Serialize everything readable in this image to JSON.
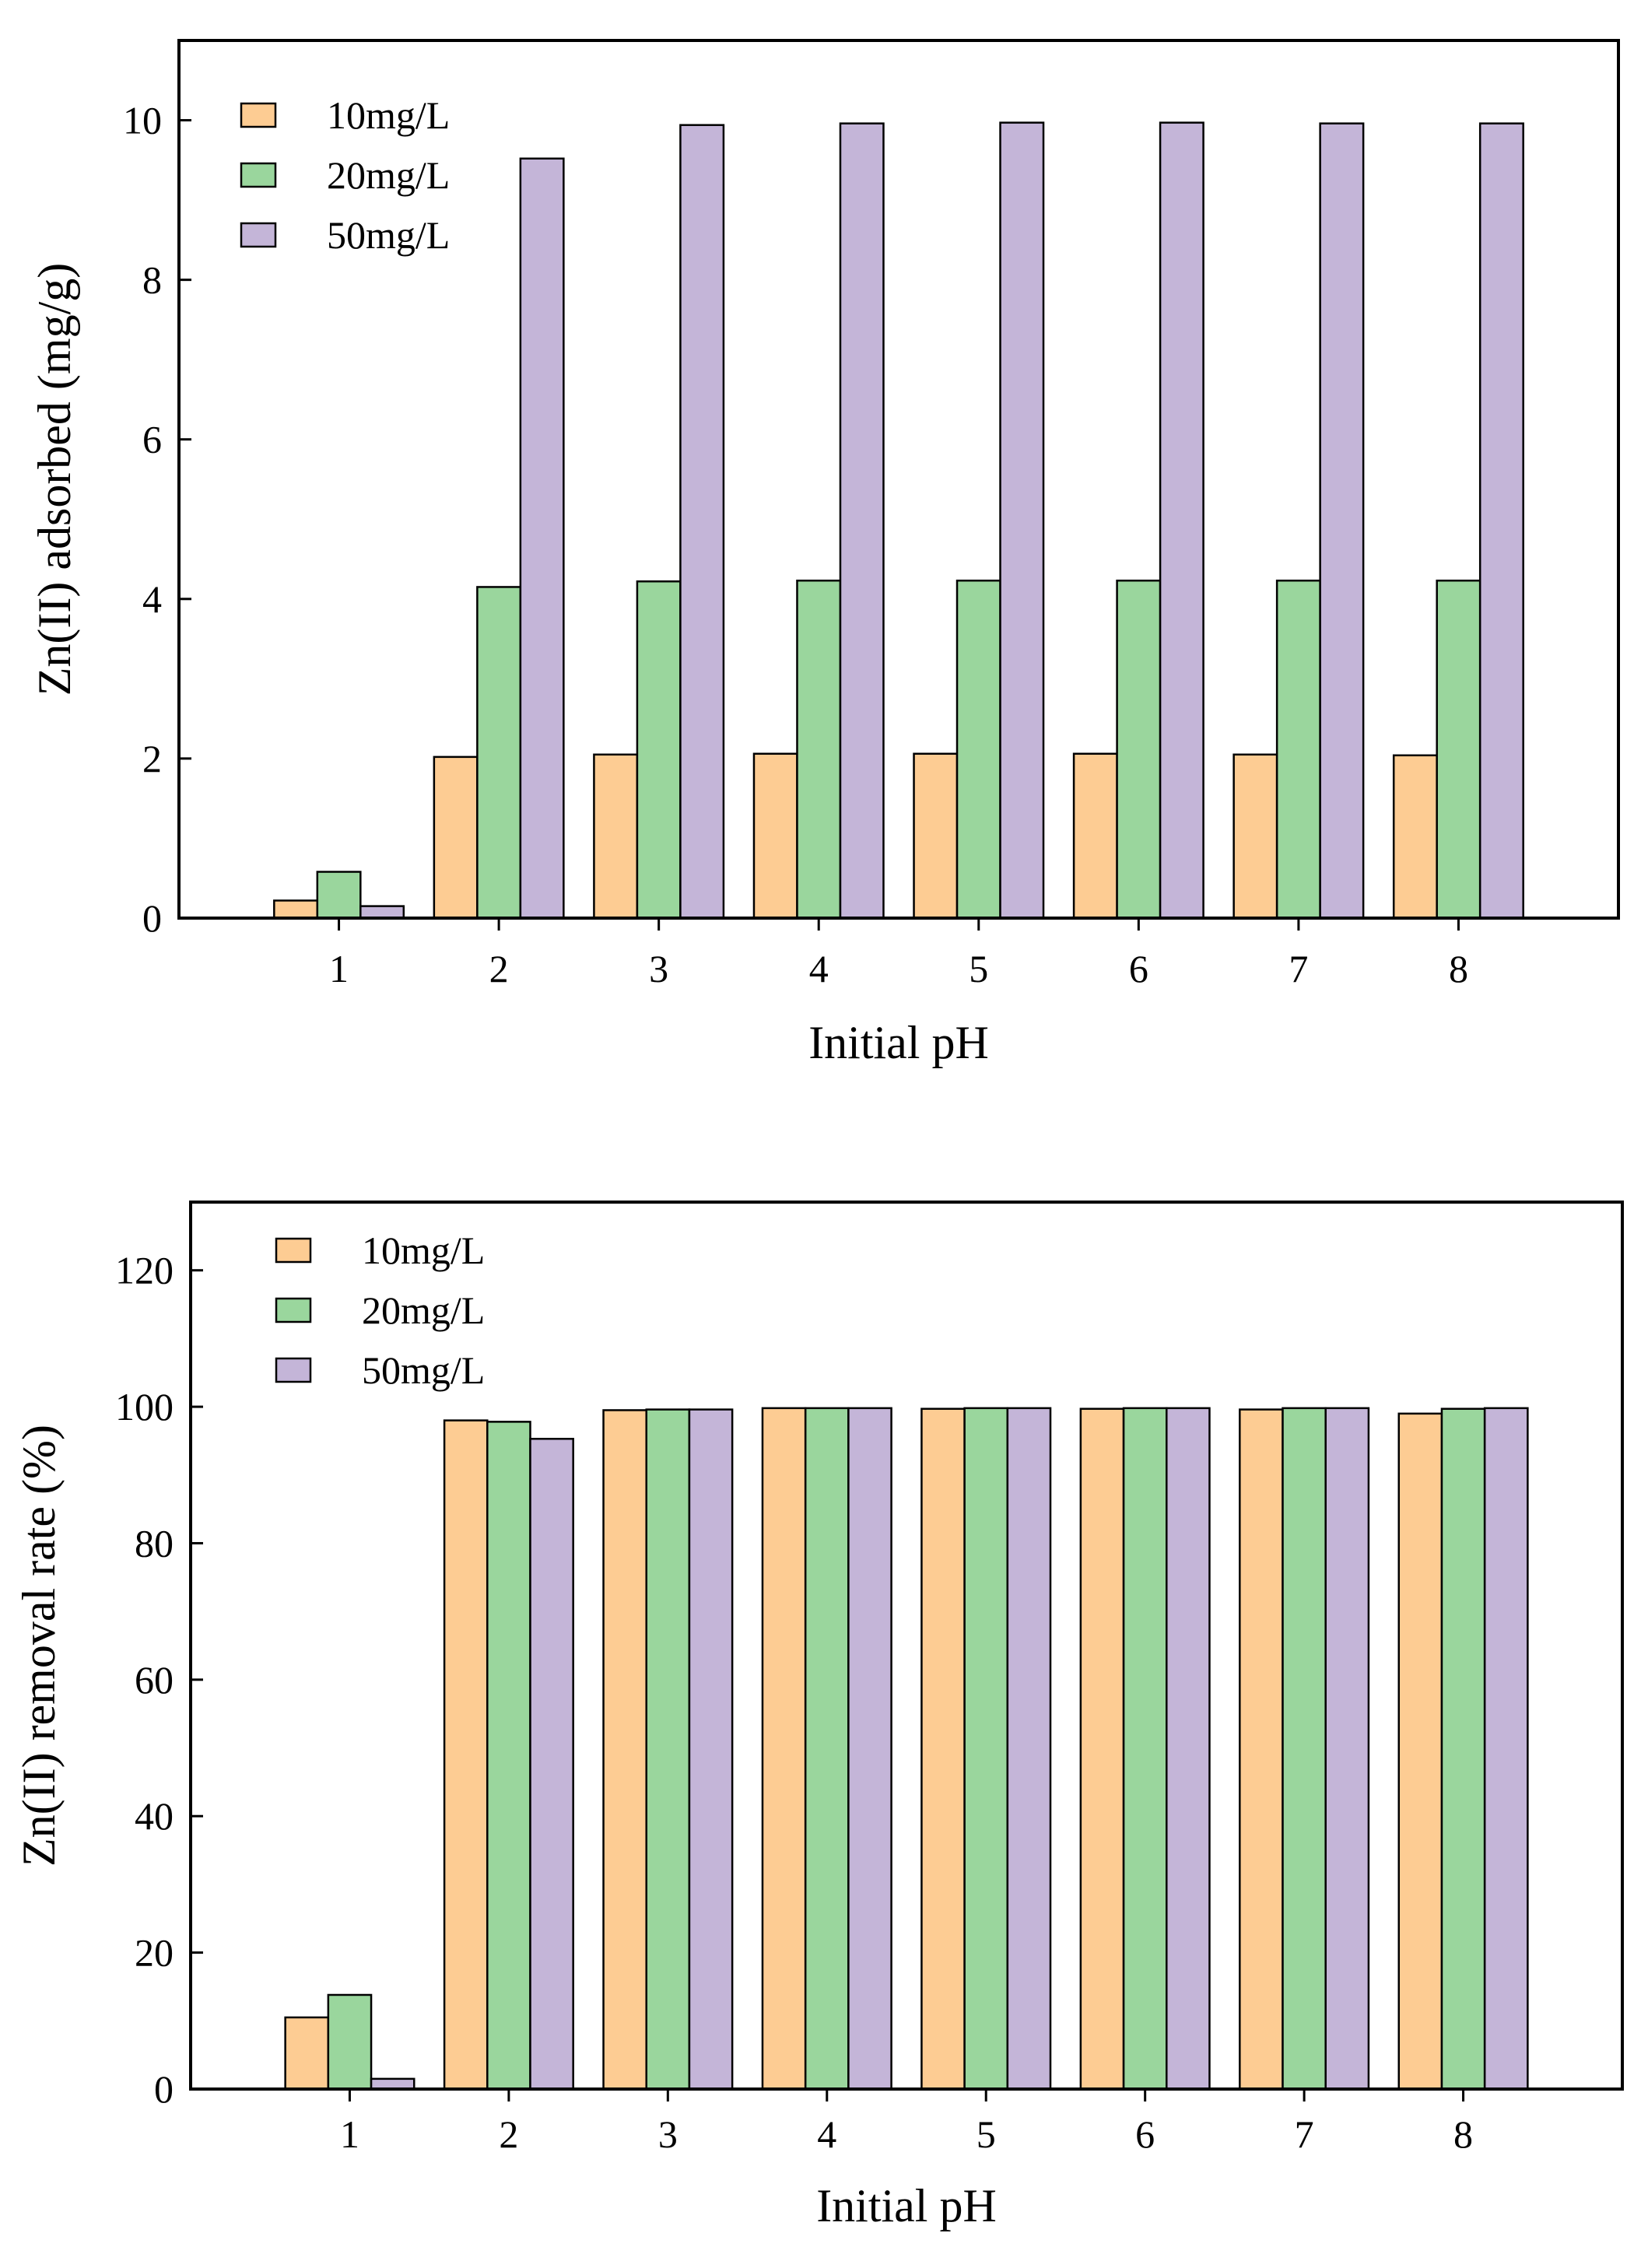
{
  "colors": {
    "10mg/L": "#FDCC93",
    "20mg/L": "#9AD69D",
    "50mg/L": "#C4B5D8",
    "edge": "#000000"
  },
  "chart_data": [
    {
      "type": "bar",
      "title": "",
      "xlabel": "Initial pH",
      "ylabel": "Zn(II) adsorbed (mg/g)",
      "categories": [
        "1",
        "2",
        "3",
        "4",
        "5",
        "6",
        "7",
        "8"
      ],
      "ylim": [
        0,
        11
      ],
      "yticks": [
        0,
        2,
        4,
        6,
        8,
        10
      ],
      "legend_position": "top-left",
      "series": [
        {
          "name": "10mg/L",
          "values": [
            0.22,
            2.02,
            2.05,
            2.06,
            2.06,
            2.06,
            2.05,
            2.04
          ]
        },
        {
          "name": "20mg/L",
          "values": [
            0.58,
            4.15,
            4.22,
            4.23,
            4.23,
            4.23,
            4.23,
            4.23
          ]
        },
        {
          "name": "50mg/L",
          "values": [
            0.15,
            9.52,
            9.94,
            9.96,
            9.97,
            9.97,
            9.96,
            9.96
          ]
        }
      ]
    },
    {
      "type": "bar",
      "title": "",
      "xlabel": "Initial pH",
      "ylabel": "Zn(II) removal rate (%)",
      "categories": [
        "1",
        "2",
        "3",
        "4",
        "5",
        "6",
        "7",
        "8"
      ],
      "ylim": [
        0,
        130
      ],
      "yticks": [
        0,
        20,
        40,
        60,
        80,
        100,
        120
      ],
      "legend_position": "top-left",
      "series": [
        {
          "name": "10mg/L",
          "values": [
            10.5,
            98.0,
            99.5,
            99.8,
            99.7,
            99.7,
            99.6,
            99.0
          ]
        },
        {
          "name": "20mg/L",
          "values": [
            13.8,
            97.8,
            99.6,
            99.8,
            99.8,
            99.8,
            99.8,
            99.7
          ]
        },
        {
          "name": "50mg/L",
          "values": [
            1.5,
            95.3,
            99.6,
            99.8,
            99.8,
            99.8,
            99.8,
            99.8
          ]
        }
      ]
    }
  ]
}
